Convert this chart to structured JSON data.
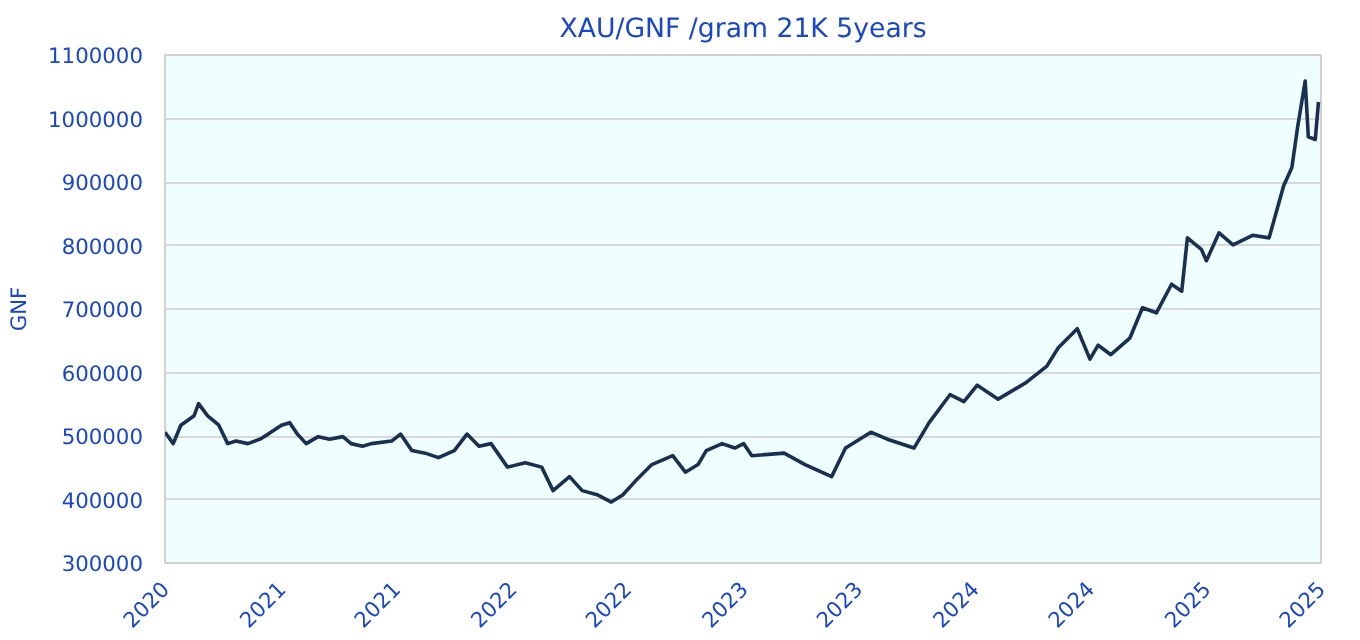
{
  "chart_data": {
    "type": "line",
    "title": "XAU/GNF /gram 21K 5years",
    "ylabel": "GNF",
    "xlim": [
      "2020-07-01",
      "2025-07-01"
    ],
    "xticks": [
      {
        "value": "2020-07-01",
        "label": "2020"
      },
      {
        "value": "2021-01-01",
        "label": "2021"
      },
      {
        "value": "2021-07-01",
        "label": "2021"
      },
      {
        "value": "2022-01-01",
        "label": "2022"
      },
      {
        "value": "2022-07-01",
        "label": "2022"
      },
      {
        "value": "2023-01-01",
        "label": "2023"
      },
      {
        "value": "2023-07-01",
        "label": "2023"
      },
      {
        "value": "2024-01-01",
        "label": "2024"
      },
      {
        "value": "2024-07-01",
        "label": "2024"
      },
      {
        "value": "2025-01-01",
        "label": "2025"
      },
      {
        "value": "2025-07-01",
        "label": "2025"
      }
    ],
    "ylim": [
      300000,
      1100000
    ],
    "yticks": [
      300000,
      400000,
      500000,
      600000,
      700000,
      800000,
      900000,
      1000000,
      1100000
    ],
    "grid": "y",
    "marker": "none",
    "line_style": "solid",
    "x": [
      "2020-07-01",
      "2020-07-14",
      "2020-07-26",
      "2020-08-16",
      "2020-08-23",
      "2020-09-06",
      "2020-09-24",
      "2020-10-08",
      "2020-10-21",
      "2020-11-09",
      "2020-11-28",
      "2020-12-11",
      "2021-01-01",
      "2021-01-14",
      "2021-01-26",
      "2021-02-09",
      "2021-02-28",
      "2021-03-18",
      "2021-04-08",
      "2021-04-21",
      "2021-05-09",
      "2021-05-23",
      "2021-06-24",
      "2021-07-08",
      "2021-07-26",
      "2021-08-16",
      "2021-09-06",
      "2021-10-01",
      "2021-10-21",
      "2021-11-09",
      "2021-11-28",
      "2021-12-24",
      "2022-01-21",
      "2022-02-16",
      "2022-03-06",
      "2022-04-01",
      "2022-04-21",
      "2022-05-16",
      "2022-06-06",
      "2022-06-24",
      "2022-07-14",
      "2022-08-09",
      "2022-09-11",
      "2022-10-01",
      "2022-10-21",
      "2022-11-03",
      "2022-11-28",
      "2022-12-18",
      "2023-01-01",
      "2023-01-14",
      "2023-03-06",
      "2023-04-08",
      "2023-05-20",
      "2023-06-11",
      "2023-07-21",
      "2023-08-16",
      "2023-09-27",
      "2023-10-21",
      "2023-11-23",
      "2023-12-15",
      "2024-01-05",
      "2024-02-07",
      "2024-03-22",
      "2024-04-24",
      "2024-05-12",
      "2024-06-11",
      "2024-07-01",
      "2024-07-14",
      "2024-08-03",
      "2024-09-02",
      "2024-09-22",
      "2024-10-14",
      "2024-11-07",
      "2024-11-23",
      "2024-12-02",
      "2024-12-24",
      "2025-01-01",
      "2025-01-21",
      "2025-02-12",
      "2025-03-15",
      "2025-04-10",
      "2025-05-03",
      "2025-05-16",
      "2025-05-25",
      "2025-06-06",
      "2025-06-11",
      "2025-06-22",
      "2025-06-27"
    ],
    "series": [
      {
        "color": "#1a3050",
        "values": [
          506000,
          488000,
          517000,
          532000,
          551000,
          532000,
          517000,
          488000,
          492000,
          488000,
          495000,
          503000,
          517000,
          521000,
          503000,
          488000,
          499000,
          495000,
          499000,
          488000,
          484000,
          488000,
          492000,
          503000,
          477000,
          473000,
          466000,
          477000,
          503000,
          484000,
          488000,
          451000,
          458000,
          451000,
          414000,
          436000,
          414000,
          407000,
          396000,
          407000,
          429000,
          455000,
          469000,
          443000,
          455000,
          477000,
          488000,
          481000,
          488000,
          469000,
          473000,
          455000,
          436000,
          481000,
          506000,
          495000,
          481000,
          521000,
          565000,
          554000,
          580000,
          558000,
          584000,
          610000,
          639000,
          669000,
          621000,
          643000,
          628000,
          654000,
          702000,
          694000,
          739000,
          728000,
          812000,
          794000,
          776000,
          820000,
          801000,
          816000,
          812000,
          894000,
          923000,
          986000,
          1059000,
          971000,
          967000,
          1026000
        ]
      }
    ]
  }
}
